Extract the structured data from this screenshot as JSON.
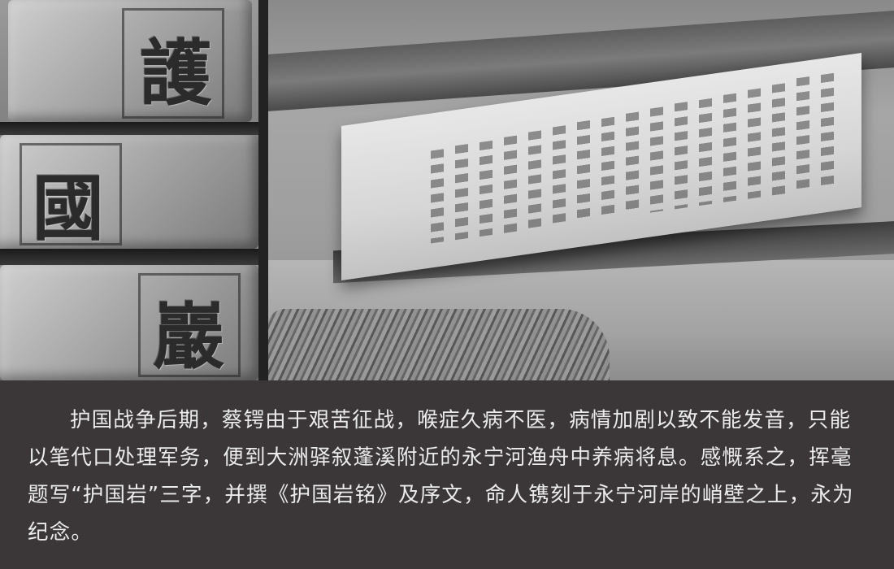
{
  "photo_left": {
    "characters": [
      "護",
      "國",
      "巖"
    ]
  },
  "caption": {
    "text": "护国战争后期，蔡锷由于艰苦征战，喉症久病不医，病情加剧以致不能发音，只能以笔代口处理军务，便到大洲驿叙蓬溪附近的永宁河渔舟中养病将息。感慨系之，挥毫题写“护国岩”三字，并撰《护国岩铭》及序文，命人镌刻于永宁河岸的峭壁之上，永为纪念。"
  }
}
